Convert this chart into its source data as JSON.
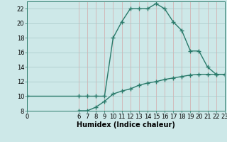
{
  "xlabel": "Humidex (Indice chaleur)",
  "bg_color": "#cde8e8",
  "line_color": "#2a7a6a",
  "line1_x": [
    0,
    6,
    7,
    8,
    9,
    10,
    11,
    12,
    13,
    14,
    15,
    16,
    17,
    18,
    19,
    20,
    21,
    22,
    23
  ],
  "line1_y": [
    10,
    10,
    10,
    10,
    10,
    18,
    20.2,
    22,
    22,
    22,
    22.7,
    22,
    20.2,
    19,
    16.2,
    16.2,
    14,
    13,
    13
  ],
  "line2_x": [
    6,
    7,
    8,
    9,
    10,
    11,
    12,
    13,
    14,
    15,
    16,
    17,
    18,
    19,
    20,
    21,
    22,
    23
  ],
  "line2_y": [
    8,
    8,
    8.5,
    9.3,
    10.3,
    10.7,
    11.0,
    11.5,
    11.8,
    12.0,
    12.3,
    12.5,
    12.7,
    12.9,
    13.0,
    13.0,
    13.0,
    13.0
  ],
  "xlim": [
    0,
    23
  ],
  "ylim": [
    8,
    23
  ],
  "xticks": [
    0,
    6,
    7,
    8,
    9,
    10,
    11,
    12,
    13,
    14,
    15,
    16,
    17,
    18,
    19,
    20,
    21,
    22,
    23
  ],
  "yticks": [
    8,
    10,
    12,
    14,
    16,
    18,
    20,
    22
  ],
  "marker": "+",
  "marker_size": 4,
  "line_width": 1.0,
  "xlabel_fontsize": 7,
  "tick_fontsize": 6,
  "vgrid_color": "#d4a8a8",
  "hgrid_color": "#a8c8c8"
}
